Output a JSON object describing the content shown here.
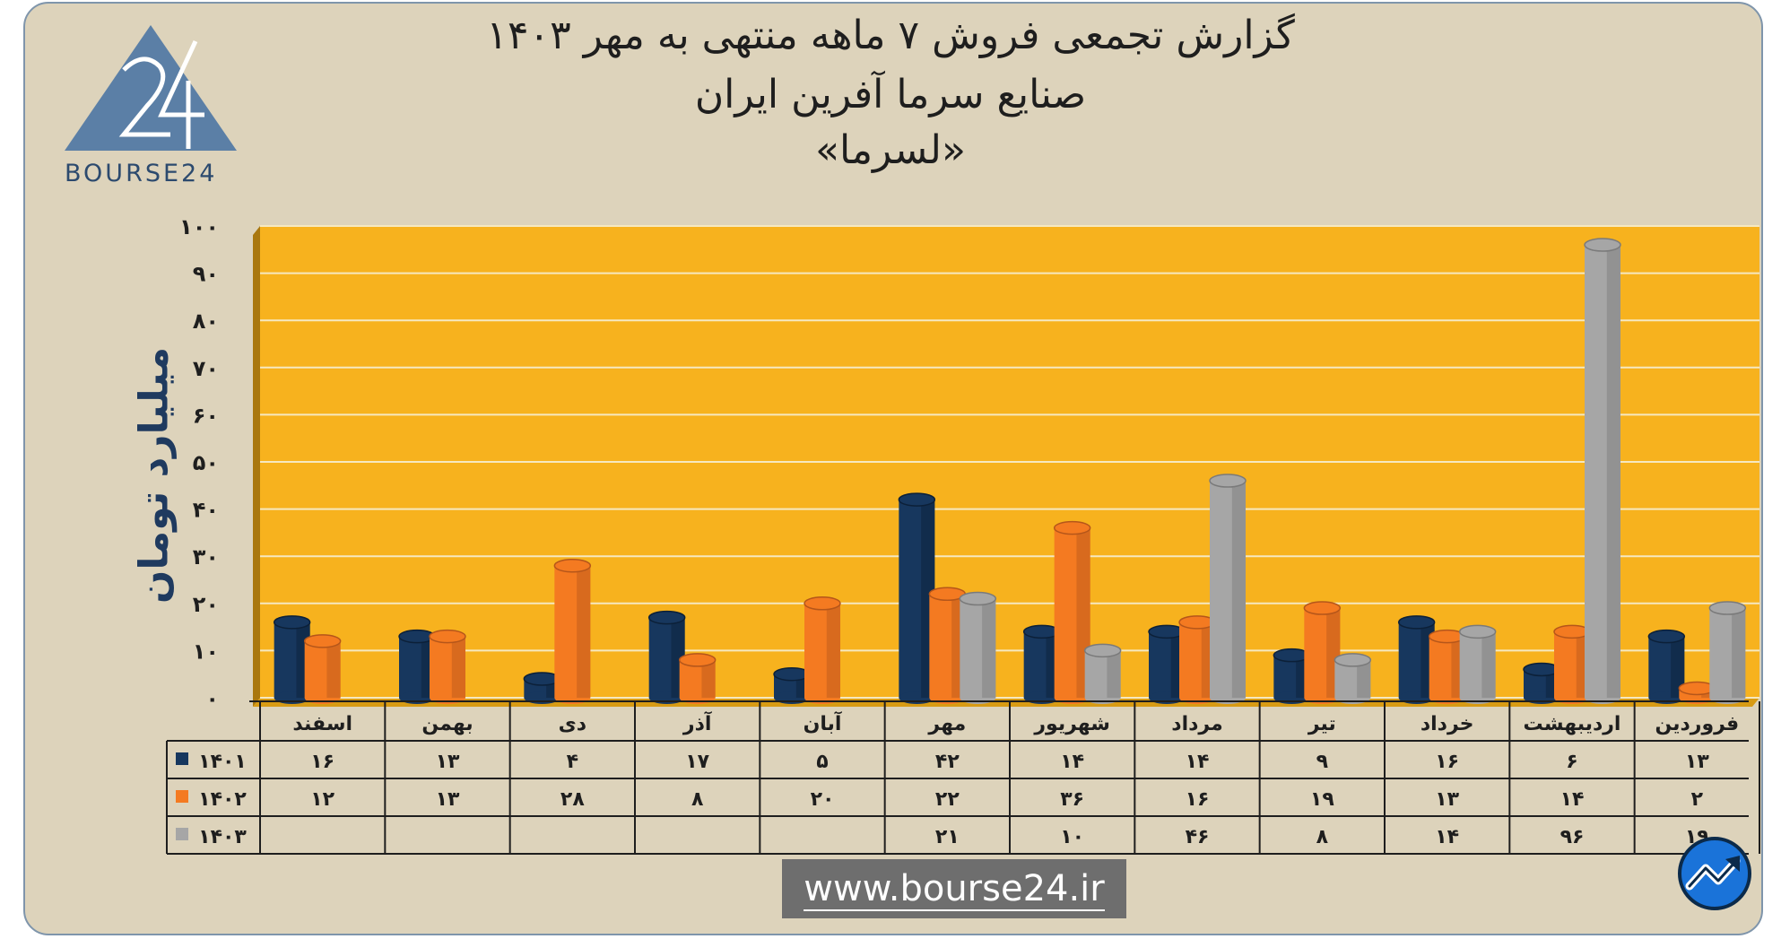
{
  "header": {
    "title_line1": "گزارش تجمعی فروش ۷ ماهه منتهی به مهر ۱۴۰۳",
    "title_line2": "صنایع سرما آفرین ایران",
    "title_line3": "«لسرما»"
  },
  "logo": {
    "text": "BOURSE24",
    "icon": "bourse24-triangle-logo"
  },
  "website": "www.bourse24.ir",
  "corner_icon": "trend-arrow-icon",
  "colors": {
    "background": "#ddd3bb",
    "plot": "#f7b21e",
    "series_1401": "#17375e",
    "series_1402": "#f47a21",
    "series_1403": "#a6a6a6"
  },
  "chart_data": {
    "type": "bar",
    "ylabel": "میلیارد تومان",
    "ylim": [
      0,
      100
    ],
    "yticks": [
      0,
      10,
      20,
      30,
      40,
      50,
      60,
      70,
      80,
      90,
      100
    ],
    "ytick_labels": [
      "۰",
      "۱۰",
      "۲۰",
      "۳۰",
      "۴۰",
      "۵۰",
      "۶۰",
      "۷۰",
      "۸۰",
      "۹۰",
      "۱۰۰"
    ],
    "categories": [
      "فروردین",
      "اردیبهشت",
      "خرداد",
      "تیر",
      "مرداد",
      "شهریور",
      "مهر",
      "آبان",
      "آذر",
      "دی",
      "بهمن",
      "اسفند"
    ],
    "series": [
      {
        "name": "۱۴۰۱",
        "values": [
          13,
          6,
          16,
          9,
          14,
          14,
          42,
          5,
          17,
          4,
          13,
          16
        ],
        "labels": [
          "۱۳",
          "۶",
          "۱۶",
          "۹",
          "۱۴",
          "۱۴",
          "۴۲",
          "۵",
          "۱۷",
          "۴",
          "۱۳",
          "۱۶"
        ]
      },
      {
        "name": "۱۴۰۲",
        "values": [
          2,
          14,
          13,
          19,
          16,
          36,
          22,
          20,
          8,
          28,
          13,
          12
        ],
        "labels": [
          "۲",
          "۱۴",
          "۱۳",
          "۱۹",
          "۱۶",
          "۳۶",
          "۲۲",
          "۲۰",
          "۸",
          "۲۸",
          "۱۳",
          "۱۲"
        ]
      },
      {
        "name": "۱۴۰۳",
        "values": [
          19,
          96,
          14,
          8,
          46,
          10,
          21,
          null,
          null,
          null,
          null,
          null
        ],
        "labels": [
          "۱۹",
          "۹۶",
          "۱۴",
          "۸",
          "۴۶",
          "۱۰",
          "۲۱",
          "",
          "",
          "",
          "",
          ""
        ]
      }
    ],
    "data_table": true,
    "grid": true,
    "legend": "data-table-left"
  }
}
